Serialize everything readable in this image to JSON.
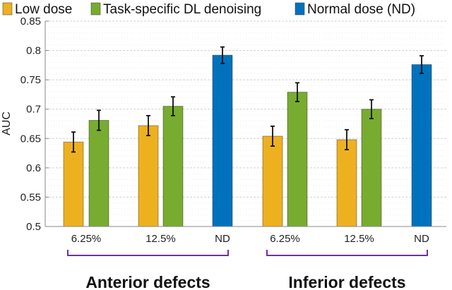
{
  "chart_data": {
    "type": "bar",
    "ylabel": "AUC",
    "ylim": [
      0.5,
      0.85
    ],
    "yticks": [
      "0.5",
      "0.55",
      "0.6",
      "0.65",
      "0.7",
      "0.75",
      "0.8",
      "0.85"
    ],
    "grid": true,
    "legend_position": "top",
    "legend": [
      {
        "name": "Low dose",
        "color": "#edb120"
      },
      {
        "name": "Task-specific DL denoising",
        "color": "#77ac30"
      },
      {
        "name": "Normal dose (ND)",
        "color": "#0072bd"
      }
    ],
    "groups": [
      {
        "label": "Anterior defects",
        "categories": [
          {
            "label": "6.25%",
            "bars": [
              {
                "series": 0,
                "value": 0.644,
                "error": 0.017
              },
              {
                "series": 1,
                "value": 0.681,
                "error": 0.017
              }
            ]
          },
          {
            "label": "12.5%",
            "bars": [
              {
                "series": 0,
                "value": 0.672,
                "error": 0.017
              },
              {
                "series": 1,
                "value": 0.705,
                "error": 0.016
              }
            ]
          },
          {
            "label": "ND",
            "bars": [
              {
                "series": 2,
                "value": 0.792,
                "error": 0.014
              }
            ]
          }
        ]
      },
      {
        "label": "Inferior defects",
        "categories": [
          {
            "label": "6.25%",
            "bars": [
              {
                "series": 0,
                "value": 0.654,
                "error": 0.017
              },
              {
                "series": 1,
                "value": 0.729,
                "error": 0.016
              }
            ]
          },
          {
            "label": "12.5%",
            "bars": [
              {
                "series": 0,
                "value": 0.648,
                "error": 0.017
              },
              {
                "series": 1,
                "value": 0.7,
                "error": 0.016
              }
            ]
          },
          {
            "label": "ND",
            "bars": [
              {
                "series": 2,
                "value": 0.776,
                "error": 0.015
              }
            ]
          }
        ]
      }
    ],
    "bracket_color": "#7030a0"
  }
}
